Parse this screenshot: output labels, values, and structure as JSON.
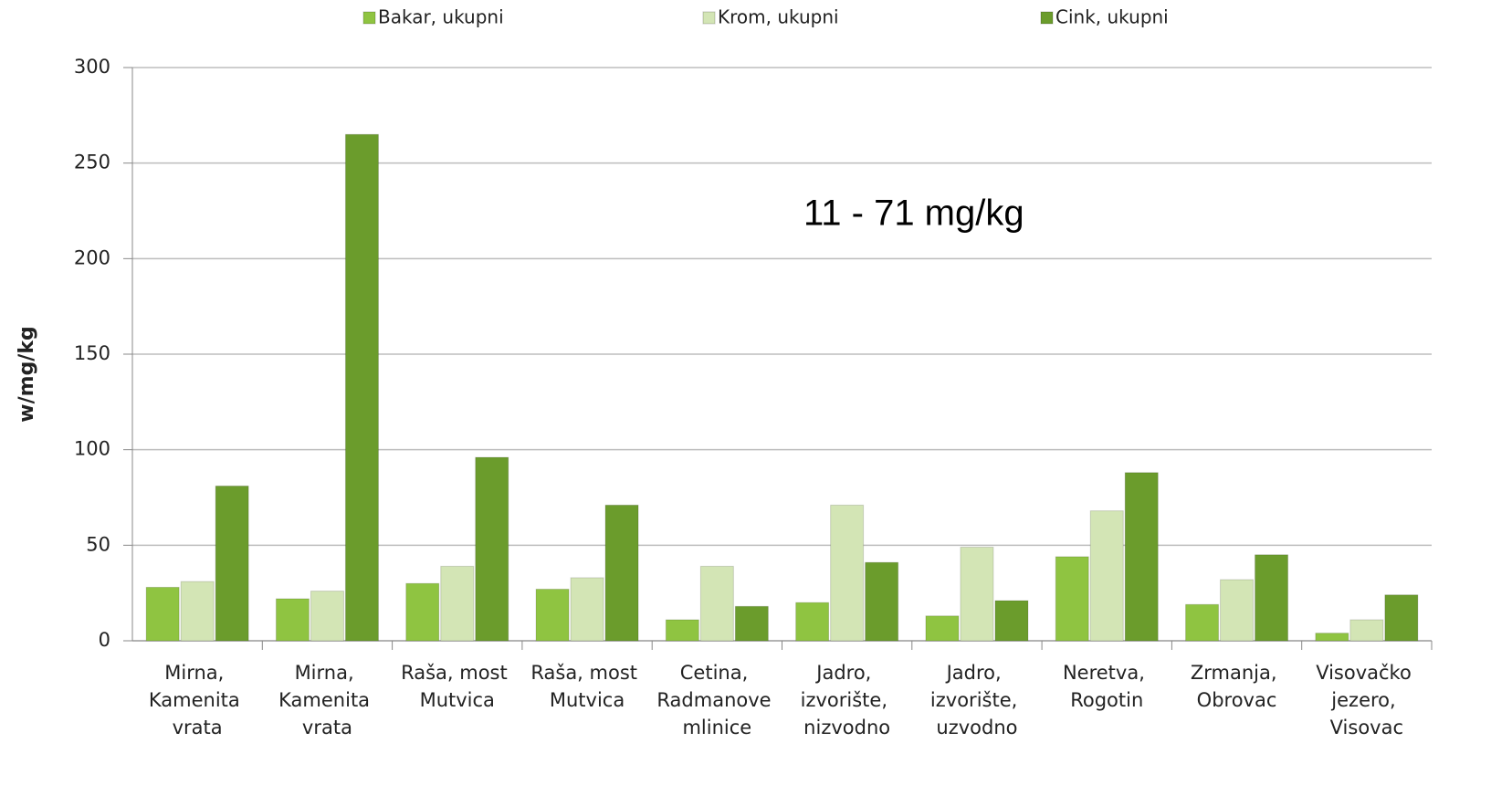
{
  "chart_data": {
    "type": "bar",
    "annotation": "11 - 71 mg/kg",
    "y_label": "w/mg/kg",
    "categories": [
      "Mirna, Kamenita vrata",
      "Mirna, Kamenita vrata",
      "Raša, most Mutvica",
      "Raša, most Mutvica",
      "Cetina, Radmanove mlinice",
      "Jadro, izvorište, nizvodno",
      "Jadro, izvorište, uzvodno",
      "Neretva, Rogotin",
      "Zrmanja, Obrovac",
      "Visovačko jezero, Visovac"
    ],
    "series": [
      {
        "name": "Bakar, ukupni",
        "color": "#8fc441",
        "values": [
          28,
          22,
          30,
          27,
          11,
          20,
          13,
          44,
          19,
          4
        ]
      },
      {
        "name": "Krom, ukupni",
        "color": "#d3e5b5",
        "values": [
          31,
          26,
          39,
          33,
          39,
          71,
          49,
          68,
          32,
          11
        ]
      },
      {
        "name": "Cink, ukupni",
        "color": "#6b9c2c",
        "values": [
          81,
          265,
          96,
          71,
          18,
          41,
          21,
          88,
          45,
          24
        ]
      }
    ],
    "ylim": [
      0,
      300
    ],
    "yticks": [
      0,
      50,
      100,
      150,
      200,
      250,
      300
    ],
    "grid": true,
    "legend": "top"
  }
}
